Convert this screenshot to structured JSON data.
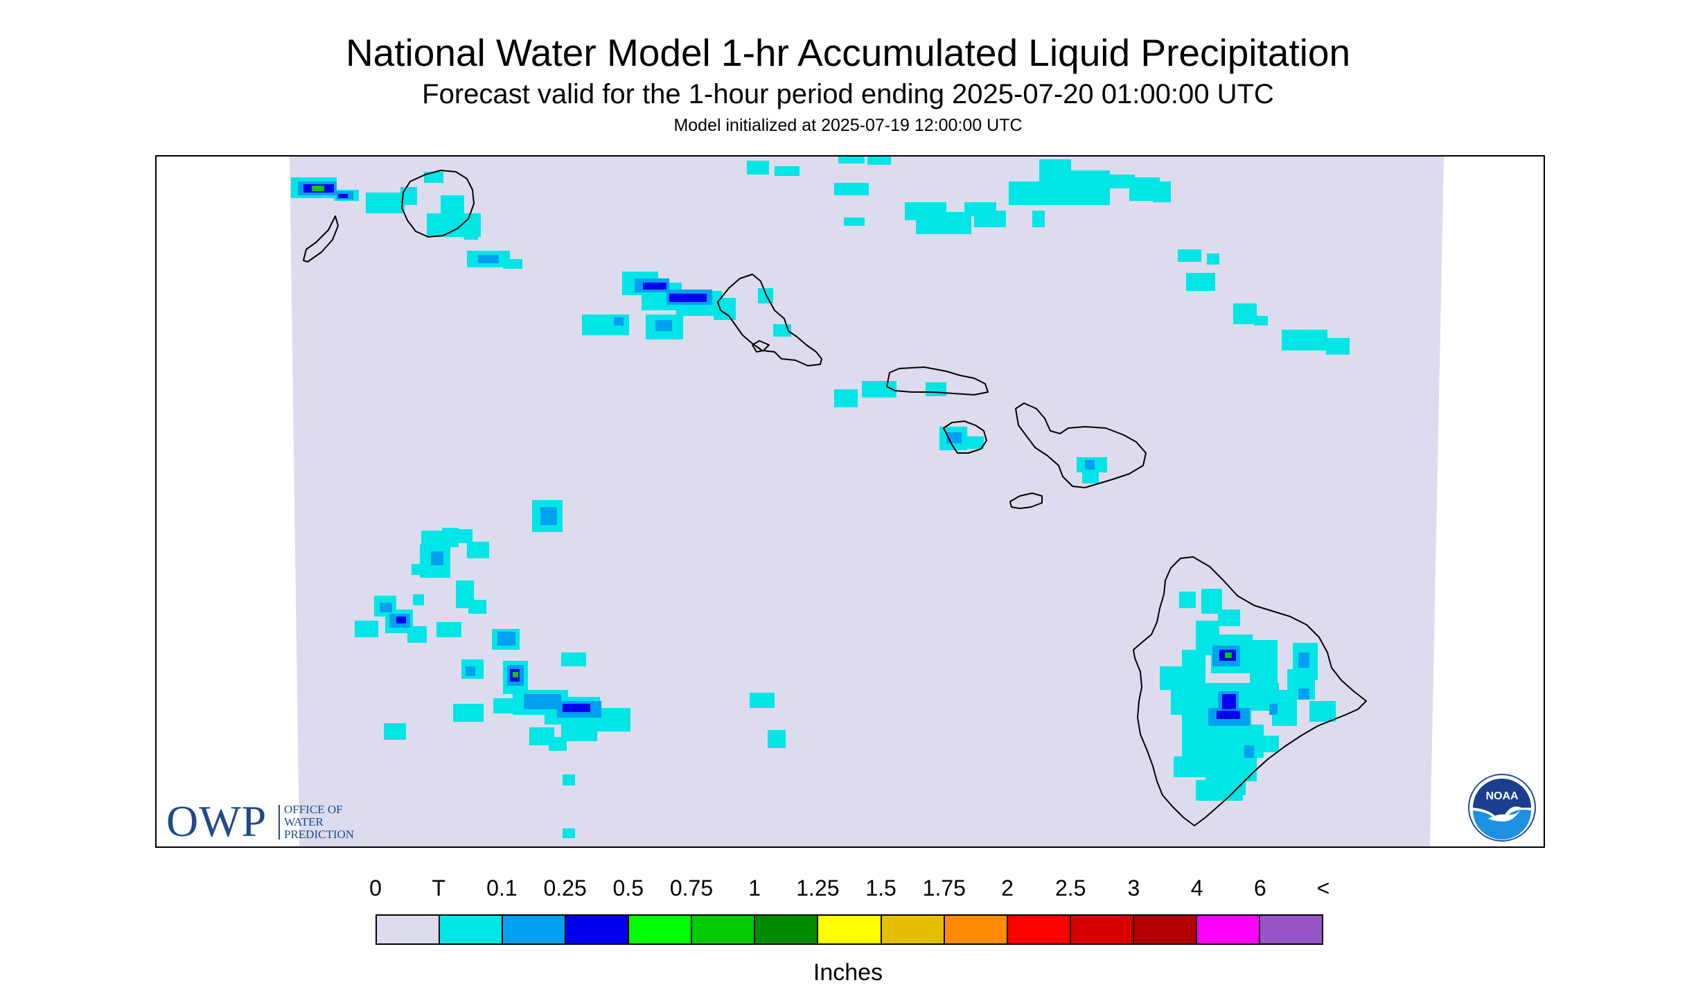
{
  "header": {
    "title": "National Water Model 1-hr Accumulated Liquid Precipitation",
    "subtitle": "Forecast valid for the 1-hour period ending 2025-07-20 01:00:00 UTC",
    "init": "Model initialized at 2025-07-19 12:00:00 UTC"
  },
  "map": {
    "background_color": "#dcdcee",
    "coastline_color": "#000000",
    "islands": [
      "niihau",
      "kauai",
      "oahu",
      "molokai",
      "lanai",
      "maui",
      "kahoolawe",
      "hawaii"
    ]
  },
  "logos": {
    "owp_letters": "OWP",
    "owp_text": [
      "OFFICE OF",
      "WATER",
      "PREDICTION"
    ],
    "noaa_text": "NOAA"
  },
  "legend": {
    "labels": [
      "0",
      "T",
      "0.1",
      "0.25",
      "0.5",
      "0.75",
      "1",
      "1.25",
      "1.5",
      "1.75",
      "2",
      "2.5",
      "3",
      "4",
      "6",
      "<"
    ],
    "colors": [
      "#dcdcee",
      "#00e5e5",
      "#00a0f0",
      "#0000ee",
      "#00ff00",
      "#00cc00",
      "#008c00",
      "#ffff00",
      "#e6be00",
      "#ff8c00",
      "#ff0000",
      "#d90000",
      "#b40000",
      "#ff00ff",
      "#9955c8"
    ],
    "units": "Inches"
  }
}
